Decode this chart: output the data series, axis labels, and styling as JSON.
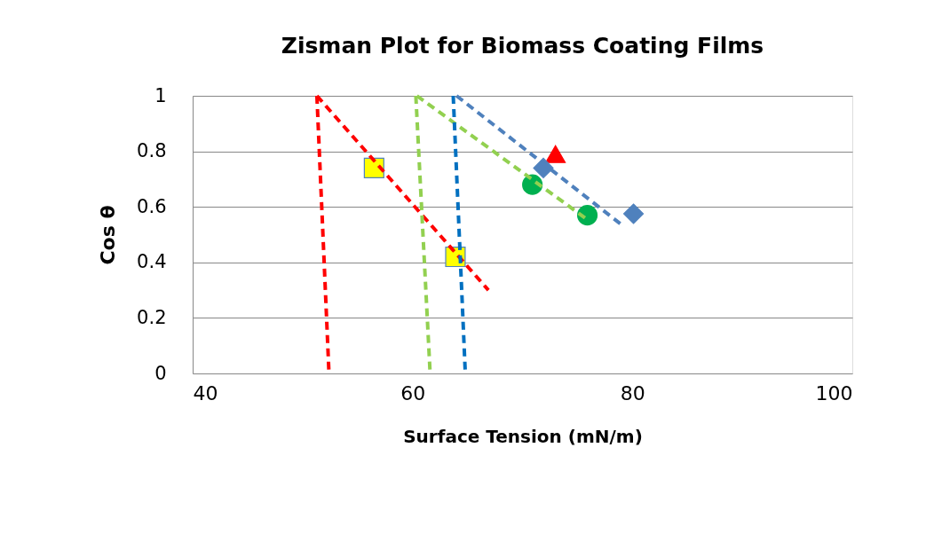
{
  "chart_data": {
    "type": "scatter",
    "title": "Zisman Plot for Biomass Coating Films",
    "xlabel": "Surface Tension (mN/m)",
    "ylabel": "Cos θ",
    "xlim": [
      40,
      100
    ],
    "xticks": [
      40,
      60,
      80,
      100
    ],
    "ylim": [
      0,
      1
    ],
    "yticks": [
      0,
      {
        "value": 0.2,
        "label": "0.2"
      },
      {
        "value": 0.4,
        "label": "0.4"
      },
      {
        "value": 0.6,
        "label": "0.6"
      },
      {
        "value": 0.8,
        "label": "0.8"
      },
      1
    ],
    "grid": "y",
    "series": [
      {
        "type": "line",
        "line_style": "dashed",
        "marker": "none",
        "color": "#ff0000",
        "x": [
          51.3,
          52.4
        ],
        "values": [
          1,
          0
        ]
      },
      {
        "type": "line",
        "line_style": "dashed",
        "marker": "none",
        "color": "#ff0000",
        "x": [
          51.3,
          66.9
        ],
        "values": [
          1,
          0.3
        ]
      },
      {
        "type": "line",
        "line_style": "dashed",
        "marker": "none",
        "color": "#92d050",
        "x": [
          60.3,
          61.6
        ],
        "values": [
          1,
          0
        ]
      },
      {
        "type": "line",
        "line_style": "dashed",
        "marker": "none",
        "color": "#92d050",
        "x": [
          60.4,
          75.7
        ],
        "values": [
          1,
          0.56
        ]
      },
      {
        "type": "line",
        "line_style": "dashed",
        "marker": "none",
        "color": "#0070c0",
        "x": [
          63.7,
          64.8
        ],
        "values": [
          1,
          0
        ]
      },
      {
        "type": "line",
        "line_style": "dashed",
        "marker": "none",
        "color": "#4f81bd",
        "x": [
          64.0,
          79.2
        ],
        "values": [
          1,
          0.53
        ]
      },
      {
        "marker": "square",
        "color": "#ffff00",
        "x": [
          56.5,
          63.9
        ],
        "values": [
          0.74,
          0.42
        ]
      },
      {
        "marker": "triangle",
        "color": "#ff0000",
        "x": [
          73.0
        ],
        "values": [
          0.79
        ]
      },
      {
        "marker": "diamond",
        "color": "#4f81bd",
        "x": [
          71.9,
          80.1
        ],
        "values": [
          0.74,
          0.575
        ]
      },
      {
        "marker": "circle",
        "color": "#00b050",
        "x": [
          70.9,
          75.9
        ],
        "values": [
          0.68,
          0.57
        ]
      }
    ]
  }
}
